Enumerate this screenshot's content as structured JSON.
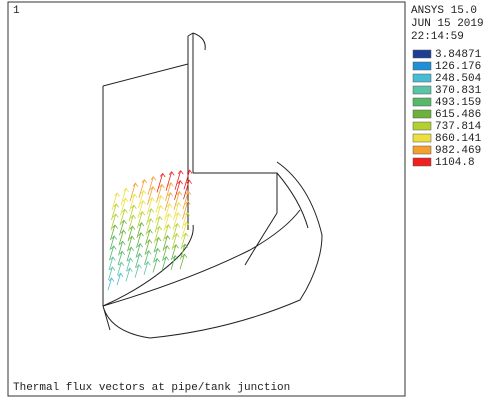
{
  "window": {
    "number": "1",
    "caption": "Thermal flux vectors at pipe/tank junction"
  },
  "header": {
    "product": "ANSYS 15.0",
    "date": "JUN 15 2019",
    "time": "22:14:59"
  },
  "legend": [
    {
      "label": "3.84871",
      "color": "#1c3f94"
    },
    {
      "label": "126.176",
      "color": "#1e90d8"
    },
    {
      "label": "248.504",
      "color": "#48bcd2"
    },
    {
      "label": "370.831",
      "color": "#5cc4a6"
    },
    {
      "label": "493.159",
      "color": "#56b868"
    },
    {
      "label": "615.486",
      "color": "#6cb23a"
    },
    {
      "label": "737.814",
      "color": "#b4d030"
    },
    {
      "label": "860.141",
      "color": "#ece040"
    },
    {
      "label": "982.469",
      "color": "#f4a030"
    },
    {
      "label": "1104.8",
      "color": "#ee2020"
    }
  ]
}
